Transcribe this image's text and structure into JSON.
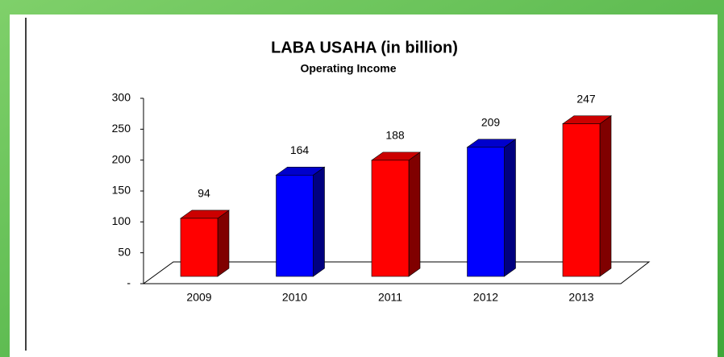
{
  "chart_data": {
    "type": "bar3d",
    "title": "LABA USAHA (in billion)",
    "subtitle": "Operating Income",
    "categories": [
      "2009",
      "2010",
      "2011",
      "2012",
      "2013"
    ],
    "values": [
      94,
      164,
      188,
      209,
      247
    ],
    "colors": [
      "#ff0000",
      "#0000ff",
      "#ff0000",
      "#0000ff",
      "#ff0000"
    ],
    "ylim": [
      0,
      300
    ],
    "yticks": [
      {
        "value": 0,
        "label": "-"
      },
      50,
      100,
      150,
      200,
      250,
      300
    ]
  }
}
